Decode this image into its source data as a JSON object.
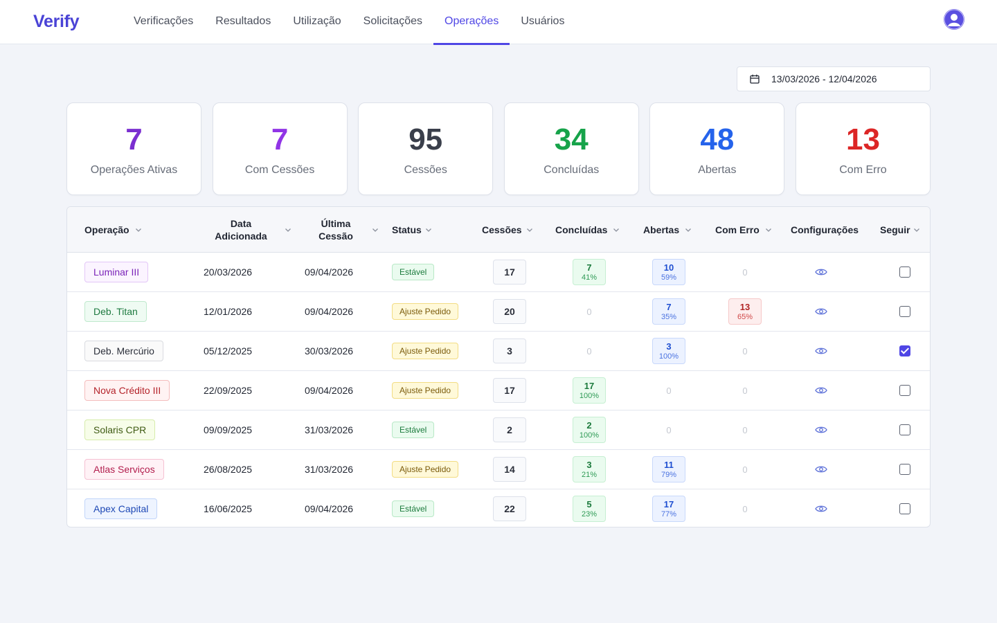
{
  "app": {
    "logo": "Verify"
  },
  "nav": {
    "tabs": [
      {
        "label": "Verificações",
        "active": false
      },
      {
        "label": "Resultados",
        "active": false
      },
      {
        "label": "Utilização",
        "active": false
      },
      {
        "label": "Solicitações",
        "active": false
      },
      {
        "label": "Operações",
        "active": true
      },
      {
        "label": "Usuários",
        "active": false
      }
    ]
  },
  "date_range": {
    "value": "13/03/2026 - 12/04/2026",
    "icon": "calendar-icon"
  },
  "stats": [
    {
      "value": "7",
      "label": "Operações Ativas",
      "color": "#7b2fd0"
    },
    {
      "value": "7",
      "label": "Com Cessões",
      "color": "#9134e6"
    },
    {
      "value": "95",
      "label": "Cessões",
      "color": "#3a3f4b"
    },
    {
      "value": "34",
      "label": "Concluídas",
      "color": "#16a34a"
    },
    {
      "value": "48",
      "label": "Abertas",
      "color": "#2563eb"
    },
    {
      "value": "13",
      "label": "Com Erro",
      "color": "#dc2626"
    }
  ],
  "table": {
    "headers": {
      "operacao": "Operação",
      "data_line1": "Data",
      "data_line2": "Adicionada",
      "ultima_line1": "Última",
      "ultima_line2": "Cessão",
      "status": "Status",
      "cessoes": "Cessões",
      "concluidas": "Concluídas",
      "abertas": "Abertas",
      "com_erro": "Com Erro",
      "configuracoes": "Configurações",
      "seguir": "Seguir"
    },
    "rows": [
      {
        "operacao": "Luminar III",
        "tag_color": "purple",
        "data": "20/03/2026",
        "ultima": "09/04/2026",
        "status": "Estável",
        "status_kind": "stable",
        "cessoes": "17",
        "concluidas": {
          "n": "7",
          "p": "41%"
        },
        "abertas": {
          "n": "10",
          "p": "59%"
        },
        "com_erro": {
          "n": "0",
          "p": ""
        },
        "seguir": false
      },
      {
        "operacao": "Deb. Titan",
        "tag_color": "green",
        "data": "12/01/2026",
        "ultima": "09/04/2026",
        "status": "Ajuste Pedido",
        "status_kind": "adjust",
        "cessoes": "20",
        "concluidas": {
          "n": "0",
          "p": ""
        },
        "abertas": {
          "n": "7",
          "p": "35%"
        },
        "com_erro": {
          "n": "13",
          "p": "65%"
        },
        "seguir": false
      },
      {
        "operacao": "Deb. Mercúrio",
        "tag_color": "gray",
        "data": "05/12/2025",
        "ultima": "30/03/2026",
        "status": "Ajuste Pedido",
        "status_kind": "adjust",
        "cessoes": "3",
        "concluidas": {
          "n": "0",
          "p": ""
        },
        "abertas": {
          "n": "3",
          "p": "100%"
        },
        "com_erro": {
          "n": "0",
          "p": ""
        },
        "seguir": true
      },
      {
        "operacao": "Nova Crédito III",
        "tag_color": "red",
        "data": "22/09/2025",
        "ultima": "09/04/2026",
        "status": "Ajuste Pedido",
        "status_kind": "adjust",
        "cessoes": "17",
        "concluidas": {
          "n": "17",
          "p": "100%"
        },
        "abertas": {
          "n": "0",
          "p": ""
        },
        "com_erro": {
          "n": "0",
          "p": ""
        },
        "seguir": false
      },
      {
        "operacao": "Solaris CPR",
        "tag_color": "lime",
        "data": "09/09/2025",
        "ultima": "31/03/2026",
        "status": "Estável",
        "status_kind": "stable",
        "cessoes": "2",
        "concluidas": {
          "n": "2",
          "p": "100%"
        },
        "abertas": {
          "n": "0",
          "p": ""
        },
        "com_erro": {
          "n": "0",
          "p": ""
        },
        "seguir": false
      },
      {
        "operacao": "Atlas Serviços",
        "tag_color": "pink",
        "data": "26/08/2025",
        "ultima": "31/03/2026",
        "status": "Ajuste Pedido",
        "status_kind": "adjust",
        "cessoes": "14",
        "concluidas": {
          "n": "3",
          "p": "21%"
        },
        "abertas": {
          "n": "11",
          "p": "79%"
        },
        "com_erro": {
          "n": "0",
          "p": ""
        },
        "seguir": false
      },
      {
        "operacao": "Apex Capital",
        "tag_color": "blue",
        "data": "16/06/2025",
        "ultima": "09/04/2026",
        "status": "Estável",
        "status_kind": "stable",
        "cessoes": "22",
        "concluidas": {
          "n": "5",
          "p": "23%"
        },
        "abertas": {
          "n": "17",
          "p": "77%"
        },
        "com_erro": {
          "n": "0",
          "p": ""
        },
        "seguir": false
      }
    ]
  },
  "icons": {
    "config": "eye-icon",
    "sort": "chevron-down-icon",
    "avatar": "user-avatar-icon"
  },
  "colors": {
    "accent": "#4f46e5",
    "tags": {
      "purple": {
        "bg": "#fbf4ff",
        "border": "#e3c6f7",
        "fg": "#7a23b8"
      },
      "green": {
        "bg": "#effbf3",
        "border": "#bfe9cd",
        "fg": "#1e7a40"
      },
      "gray": {
        "bg": "#fafafa",
        "border": "#d9dbe0",
        "fg": "#2b2f3a"
      },
      "red": {
        "bg": "#fff3f3",
        "border": "#f4bcbc",
        "fg": "#b4232a"
      },
      "lime": {
        "bg": "#f7fde9",
        "border": "#d6ecab",
        "fg": "#3e5a12"
      },
      "pink": {
        "bg": "#fff2f6",
        "border": "#f5c0d2",
        "fg": "#b21d4d"
      },
      "blue": {
        "bg": "#eef4ff",
        "border": "#c2d5fa",
        "fg": "#1d48b5"
      }
    },
    "status": {
      "stable": {
        "bg": "#eafbef",
        "border": "#b8e8c6",
        "fg": "#1b7a3c"
      },
      "adjust": {
        "bg": "#fff9d9",
        "border": "#f2dc82",
        "fg": "#7a5a0a"
      }
    }
  }
}
